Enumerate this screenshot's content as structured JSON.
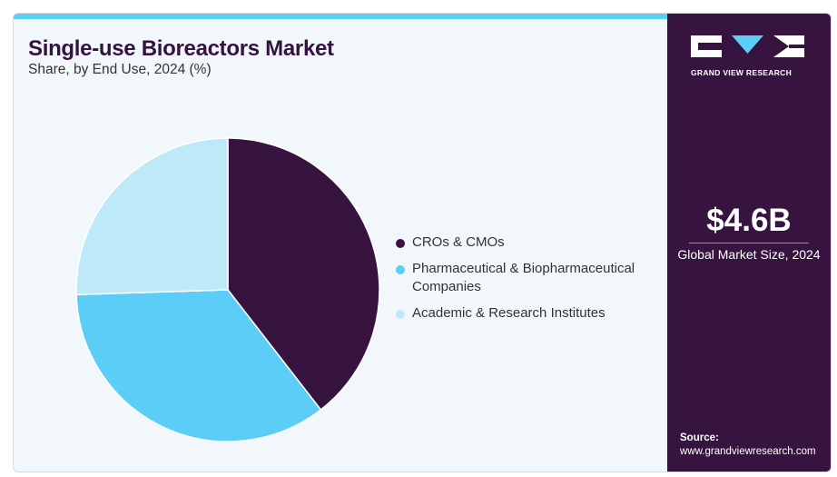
{
  "header": {
    "title": "Single-use Bioreactors Market",
    "subtitle": "Share, by End Use, 2024 (%)"
  },
  "chart_data": {
    "type": "pie",
    "title": "Single-use Bioreactors Market",
    "subtitle": "Share, by End Use, 2024 (%)",
    "categories": [
      "CROs & CMOs",
      "Pharmaceutical & Biopharmaceutical Companies",
      "Academic & Research Institutes"
    ],
    "values": [
      39.5,
      35,
      25.5
    ],
    "colors": [
      "#37133f",
      "#5ccdf6",
      "#bde9f8"
    ],
    "legend_position": "right"
  },
  "legend": {
    "items": [
      {
        "label": "CROs & CMOs"
      },
      {
        "label": "Pharmaceutical & Biopharmaceutical Companies"
      },
      {
        "label": "Academic & Research Institutes"
      }
    ]
  },
  "sidebar": {
    "logo_text": "GRAND VIEW RESEARCH",
    "market_value": "$4.6B",
    "market_label": "Global Market Size, 2024",
    "source_label": "Source:",
    "source_url": "www.grandviewresearch.com"
  }
}
